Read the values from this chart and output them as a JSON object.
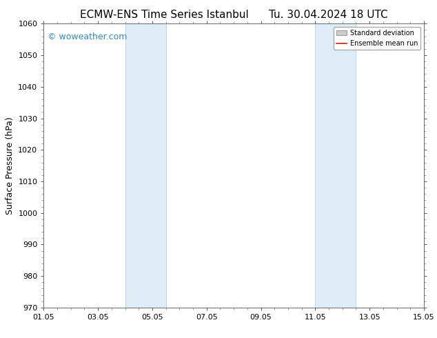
{
  "title_left": "ECMW-ENS Time Series Istanbul",
  "title_right": "Tu. 30.04.2024 18 UTC",
  "ylabel": "Surface Pressure (hPa)",
  "xlabel": "",
  "ylim": [
    970,
    1060
  ],
  "yticks": [
    970,
    980,
    990,
    1000,
    1010,
    1020,
    1030,
    1040,
    1050,
    1060
  ],
  "xtick_labels": [
    "01.05",
    "03.05",
    "05.05",
    "07.05",
    "09.05",
    "11.05",
    "13.05",
    "15.05"
  ],
  "xtick_positions": [
    0,
    2,
    4,
    6,
    8,
    10,
    12,
    14
  ],
  "xlim": [
    0,
    14
  ],
  "shaded_bands": [
    {
      "x_start": 3.0,
      "x_end": 4.5
    },
    {
      "x_start": 10.0,
      "x_end": 11.5
    }
  ],
  "shaded_color": "#deedf8",
  "shaded_edge_color": "#aaccdd",
  "background_color": "#ffffff",
  "watermark_text": "© woweather.com",
  "watermark_color": "#3388bb",
  "legend_std_color": "#cccccc",
  "legend_mean_color": "#cc2200",
  "title_fontsize": 11,
  "ylabel_fontsize": 9,
  "tick_fontsize": 8,
  "watermark_fontsize": 9
}
